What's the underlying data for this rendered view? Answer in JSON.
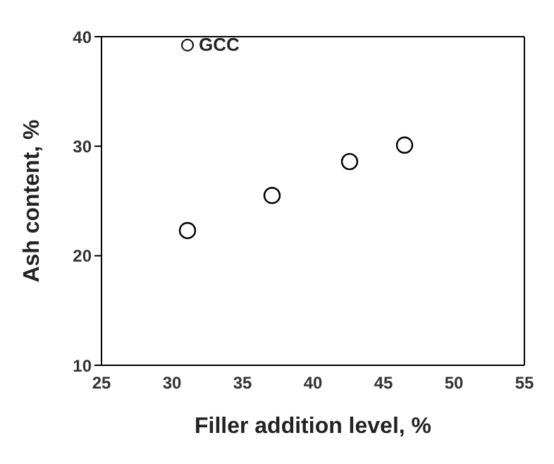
{
  "chart_data": {
    "type": "scatter",
    "xlabel": "Filler addition level, %",
    "ylabel": "Ash content, %",
    "x": [
      31.1,
      37.1,
      42.6,
      46.5
    ],
    "series": [
      {
        "name": "GCC",
        "color": "#000000",
        "values": [
          22.3,
          25.5,
          28.6,
          30.1
        ]
      }
    ],
    "xlim": [
      25,
      55
    ],
    "xticks": [
      25,
      30,
      35,
      40,
      45,
      50,
      55
    ],
    "ylim": [
      10,
      40
    ],
    "yticks": [
      10,
      20,
      30,
      40
    ],
    "legend": "top left",
    "marker": "circle"
  }
}
